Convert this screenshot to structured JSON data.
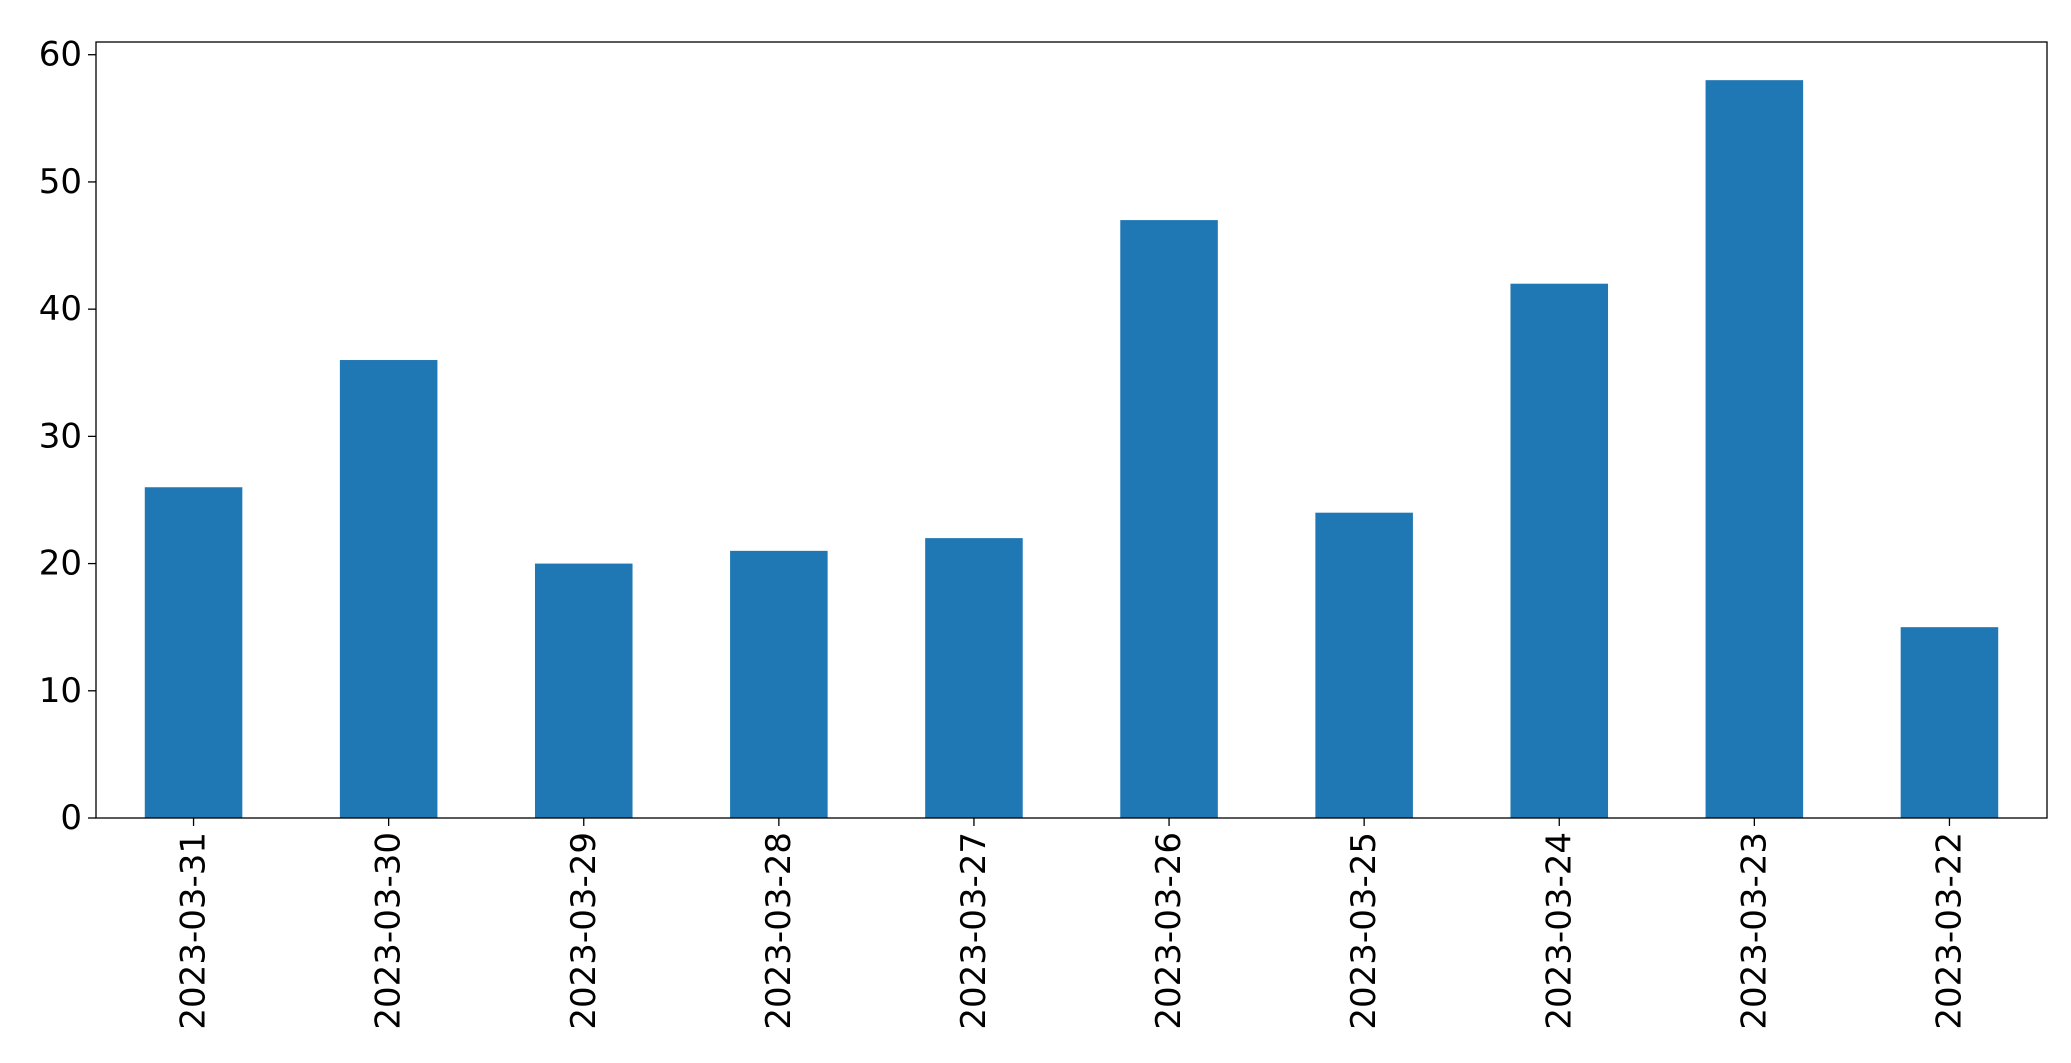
{
  "chart_data": {
    "type": "bar",
    "title": "",
    "xlabel": "",
    "ylabel": "",
    "categories": [
      "2023-03-31",
      "2023-03-30",
      "2023-03-29",
      "2023-03-28",
      "2023-03-27",
      "2023-03-26",
      "2023-03-25",
      "2023-03-24",
      "2023-03-23",
      "2023-03-22"
    ],
    "series": [
      {
        "values": [
          26,
          36,
          20,
          21,
          22,
          47,
          24,
          42,
          58,
          15
        ]
      }
    ],
    "ylim": [
      0,
      61
    ],
    "yticks": [
      0,
      10,
      20,
      30,
      40,
      50,
      60
    ],
    "grid": false,
    "legend": "none",
    "bar_color": "#1f77b4",
    "x_tick_rotation": "vertical"
  }
}
